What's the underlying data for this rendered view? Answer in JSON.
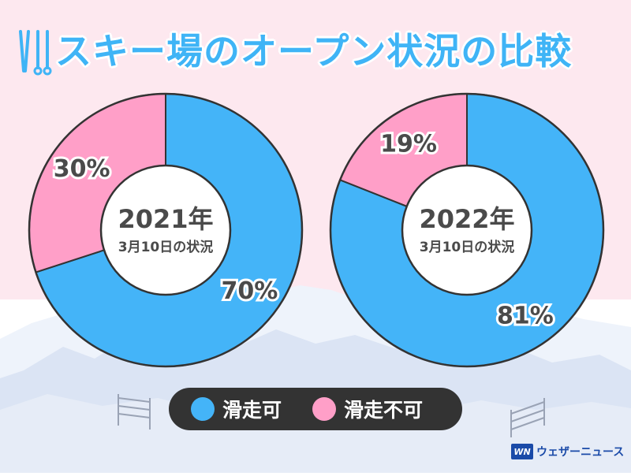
{
  "title": "スキー場のオープン状況の比較",
  "colors": {
    "open": "#44b4f8",
    "closed": "#ff9fc8",
    "background_top": "#fde8ef"
  },
  "legend": {
    "open_label": "滑走可",
    "closed_label": "滑走不可"
  },
  "brand": {
    "logo": "WN",
    "name": "ウェザーニュース"
  },
  "chart_data": [
    {
      "type": "pie",
      "center_label": "2021年",
      "center_sublabel": "3月10日の状況",
      "slices": [
        {
          "name": "滑走可",
          "value": 70,
          "label": "70%"
        },
        {
          "name": "滑走不可",
          "value": 30,
          "label": "30%"
        }
      ]
    },
    {
      "type": "pie",
      "center_label": "2022年",
      "center_sublabel": "3月10日の状況",
      "slices": [
        {
          "name": "滑走可",
          "value": 81,
          "label": "81%"
        },
        {
          "name": "滑走不可",
          "value": 19,
          "label": "19%"
        }
      ]
    }
  ]
}
